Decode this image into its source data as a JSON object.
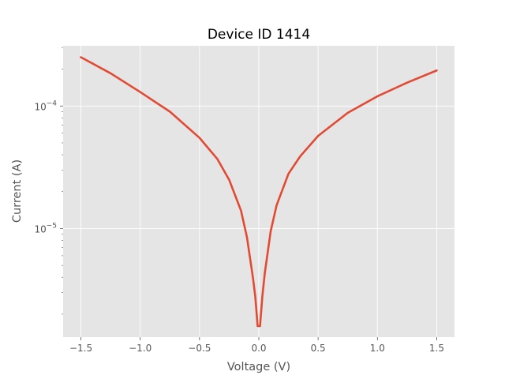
{
  "chart_data": {
    "type": "line",
    "title": "Device ID 1414",
    "xlabel": "Voltage (V)",
    "ylabel": "Current (A)",
    "xlim": [
      -1.65,
      1.65
    ],
    "ylim": [
      1.3e-06,
      0.00031
    ],
    "yscale": "log",
    "grid": true,
    "x_ticks": [
      {
        "value": -1.5,
        "label": "−1.5"
      },
      {
        "value": -1.0,
        "label": "−1.0"
      },
      {
        "value": -0.5,
        "label": "−0.5"
      },
      {
        "value": 0.0,
        "label": "0.0"
      },
      {
        "value": 0.5,
        "label": "0.5"
      },
      {
        "value": 1.0,
        "label": "1.0"
      },
      {
        "value": 1.5,
        "label": "1.5"
      }
    ],
    "y_ticks": [
      {
        "value": 1e-05,
        "base": "10",
        "exp": "−5"
      },
      {
        "value": 0.0001,
        "base": "10",
        "exp": "−4"
      }
    ],
    "series": [
      {
        "color": "#E24A33",
        "x": [
          -1.5,
          -1.25,
          -1.0,
          -0.75,
          -0.5,
          -0.35,
          -0.25,
          -0.15,
          -0.1,
          -0.05,
          -0.03,
          -0.01,
          0.0,
          0.01,
          0.03,
          0.05,
          0.1,
          0.15,
          0.25,
          0.35,
          0.5,
          0.75,
          1.0,
          1.25,
          1.5
        ],
        "y": [
          0.00025,
          0.000185,
          0.00013,
          9e-05,
          5.5e-05,
          3.7e-05,
          2.5e-05,
          1.4e-05,
          8.5e-06,
          4e-06,
          2.8e-06,
          1.6e-06,
          1.6e-06,
          1.6e-06,
          2.8e-06,
          4.3e-06,
          9.5e-06,
          1.55e-05,
          2.8e-05,
          3.9e-05,
          5.7e-05,
          8.8e-05,
          0.00012,
          0.000155,
          0.000195
        ]
      }
    ]
  }
}
